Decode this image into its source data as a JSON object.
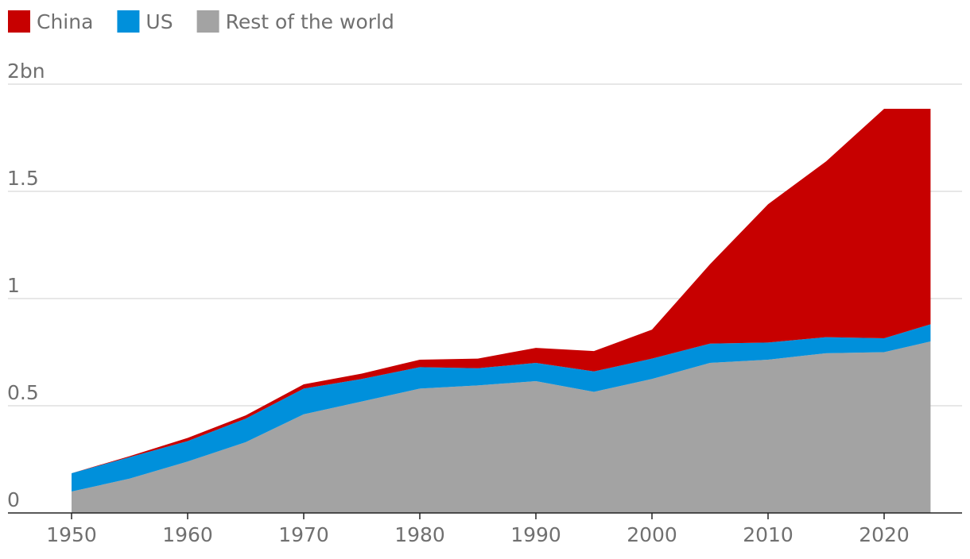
{
  "chart_data": {
    "type": "area",
    "stacked": true,
    "x": [
      1950,
      1955,
      1960,
      1965,
      1970,
      1975,
      1980,
      1985,
      1990,
      1995,
      2000,
      2005,
      2010,
      2015,
      2020,
      2024
    ],
    "series": [
      {
        "name": "Rest of the world",
        "color": "#a3a3a3",
        "values": [
          0.1,
          0.16,
          0.24,
          0.33,
          0.46,
          0.52,
          0.58,
          0.595,
          0.615,
          0.565,
          0.625,
          0.7,
          0.715,
          0.745,
          0.75,
          0.8
        ]
      },
      {
        "name": "US",
        "color": "#0090db",
        "values": [
          0.085,
          0.1,
          0.095,
          0.11,
          0.12,
          0.105,
          0.1,
          0.08,
          0.085,
          0.095,
          0.095,
          0.09,
          0.08,
          0.075,
          0.065,
          0.08
        ]
      },
      {
        "name": "China",
        "color": "#c70000",
        "values": [
          0.0,
          0.005,
          0.015,
          0.015,
          0.02,
          0.025,
          0.035,
          0.045,
          0.07,
          0.095,
          0.135,
          0.37,
          0.645,
          0.82,
          1.07,
          1.005
        ]
      }
    ],
    "legend_order": [
      "China",
      "US",
      "Rest of the world"
    ],
    "legend_position": "top-left",
    "ylim": [
      0,
      2
    ],
    "y_ticks": [
      0,
      0.5,
      1,
      1.5,
      2
    ],
    "y_tick_labels": [
      "0",
      "0.5",
      "1",
      "1.5",
      "2bn"
    ],
    "x_ticks": [
      1950,
      1960,
      1970,
      1980,
      1990,
      2000,
      2010,
      2020
    ],
    "x_tick_labels": [
      "1950",
      "1960",
      "1970",
      "1980",
      "1990",
      "2000",
      "2010",
      "2020"
    ],
    "grid": "horizontal",
    "title": "",
    "xlabel": "",
    "ylabel": ""
  }
}
